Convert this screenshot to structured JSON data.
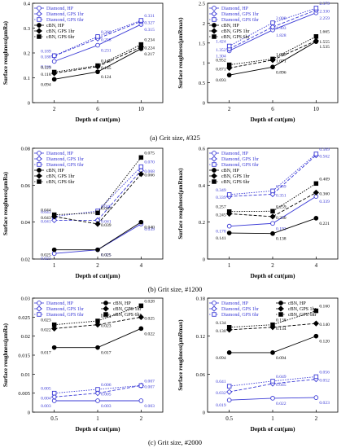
{
  "colors": {
    "diamond": "#3b3bd6",
    "cbn": "#000000"
  },
  "captions": [
    {
      "prefix": "(a) Grit size, ",
      "value": "#325"
    },
    {
      "prefix": "(b) Grit size, ",
      "value": "#1200"
    },
    {
      "prefix": "(c) Grit size, ",
      "value": "#2000"
    }
  ],
  "chart_data": [
    {
      "type": "line",
      "xlabel": "Depth of cut(μm)",
      "ylabel": "Surface roughness(μmRa)",
      "categories": [
        "2",
        "6",
        "10"
      ],
      "ylim": [
        0,
        0.4
      ],
      "yticks": [
        "0",
        "0.1",
        "0.2",
        "0.3",
        "0.4"
      ],
      "series": [
        {
          "name": "Diamond, HP",
          "values": [
            0.166,
            0.231,
            0.315
          ],
          "labels": [
            "0.166",
            "0.231",
            "0.315"
          ]
        },
        {
          "name": "Diamond, GPS 1hr",
          "values": [
            0.188,
            0.258,
            0.327
          ],
          "labels": [
            "0.188",
            "0.258",
            "0.327"
          ]
        },
        {
          "name": "Diamond, GPS 6hr",
          "values": [
            0.189,
            0.266,
            0.331
          ],
          "labels": [
            "0.189",
            "0.266",
            "0.331"
          ]
        },
        {
          "name": "cBN, HP",
          "values": [
            0.094,
            0.124,
            0.217
          ],
          "labels": [
            "0.094",
            "0.124",
            "0.217"
          ]
        },
        {
          "name": "cBN, GPS 1hr",
          "values": [
            0.118,
            0.145,
            0.224
          ],
          "labels": [
            "0.118",
            "0.145",
            "0.224"
          ]
        },
        {
          "name": "cBN, GPS 6hr",
          "values": [
            0.123,
            0.149,
            0.234
          ],
          "labels": [
            "0.123",
            "0.149",
            "0.234"
          ]
        }
      ]
    },
    {
      "type": "line",
      "xlabel": "Depth of cut(μm)",
      "ylabel": "Surface roughness(μmRmax)",
      "categories": [
        "2",
        "6",
        "10"
      ],
      "ylim": [
        0,
        2.5
      ],
      "yticks": [
        "0",
        "0.5",
        "1",
        "1.5",
        "2",
        "2.5"
      ],
      "series": [
        {
          "name": "Diamond, HP",
          "values": [
            1.304,
            1.828,
            2.259
          ],
          "labels": [
            "1.304",
            "1.828",
            "2.259"
          ]
        },
        {
          "name": "Diamond, GPS 1hr",
          "values": [
            1.352,
            1.903,
            2.33
          ],
          "labels": [
            "1.352",
            "1.903",
            "2.330"
          ]
        },
        {
          "name": "Diamond, GPS 6hr",
          "values": [
            1.424,
            2.008,
            2.379
          ],
          "labels": [
            "1.424",
            "2.008",
            "2.379"
          ]
        },
        {
          "name": "cBN, HP",
          "values": [
            0.693,
            0.896,
            1.535
          ],
          "labels": [
            "0.693",
            "0.896",
            "1.535"
          ]
        },
        {
          "name": "cBN, GPS 1hr",
          "values": [
            0.871,
            1.071,
            1.555
          ],
          "labels": [
            "0.871",
            "1.071",
            "1.555"
          ]
        },
        {
          "name": "cBN, GPS 6hr",
          "values": [
            0.952,
            1.099,
            1.665
          ],
          "labels": [
            "0.952",
            "1.099",
            "1.665"
          ]
        }
      ]
    },
    {
      "type": "line",
      "xlabel": "Depth of cut(μm)",
      "ylabel": "Surface roughness(μmRa)",
      "categories": [
        "1",
        "2",
        "4"
      ],
      "ylim": [
        0.02,
        0.08
      ],
      "yticks": [
        "0.02",
        "0.04",
        "0.06",
        "0.08"
      ],
      "series": [
        {
          "name": "Diamond, HP",
          "values": [
            0.023,
            0.025,
            0.039
          ],
          "labels": [
            "0.023",
            "0.025",
            "0.039"
          ]
        },
        {
          "name": "Diamond, GPS 1hr",
          "values": [
            0.041,
            0.041,
            0.068
          ],
          "labels": [
            "0.041",
            "0.041",
            "0.068"
          ]
        },
        {
          "name": "Diamond, GPS 6hr",
          "values": [
            0.043,
            0.046,
            0.07
          ],
          "labels": [
            "0.043",
            "0.046",
            "0.070"
          ]
        },
        {
          "name": "cBN, HP",
          "values": [
            0.025,
            0.025,
            0.04
          ],
          "labels": [
            "0.025",
            "0.025",
            "0.040"
          ]
        },
        {
          "name": "cBN, GPS 1hr",
          "values": [
            0.043,
            0.039,
            0.066
          ],
          "labels": [
            "0.043",
            "0.039",
            "0.066"
          ]
        },
        {
          "name": "cBN, GPS 6hr",
          "values": [
            0.044,
            0.045,
            0.075
          ],
          "labels": [
            "0.044",
            "0.045",
            "0.075"
          ]
        }
      ]
    },
    {
      "type": "line",
      "xlabel": "Depth of cut(μm)",
      "ylabel": "Surface roughness(μmRmax)",
      "categories": [
        "1",
        "2",
        "4"
      ],
      "ylim": [
        0,
        0.6
      ],
      "yticks": [
        "0",
        "0.2",
        "0.4",
        "0.6"
      ],
      "series": [
        {
          "name": "Diamond, HP",
          "values": [
            0.178,
            0.193,
            0.339
          ],
          "labels": [
            "0.178",
            "0.193",
            "0.339"
          ]
        },
        {
          "name": "Diamond, GPS 1hr",
          "values": [
            0.339,
            0.351,
            0.562
          ],
          "labels": [
            "0.339",
            "0.351",
            "0.562"
          ]
        },
        {
          "name": "Diamond, GPS 6hr",
          "values": [
            0.349,
            0.369,
            0.569
          ],
          "labels": [
            "0.349",
            "0.369",
            "0.569"
          ]
        },
        {
          "name": "cBN, HP",
          "values": [
            0.141,
            0.138,
            0.221
          ],
          "labels": [
            "0.141",
            "0.138",
            "0.221"
          ]
        },
        {
          "name": "cBN, GPS 1hr",
          "values": [
            0.245,
            0.23,
            0.36
          ],
          "labels": [
            "0.245",
            "0.230",
            "0.360"
          ]
        },
        {
          "name": "cBN, GPS 6hr",
          "values": [
            0.257,
            0.259,
            0.409
          ],
          "labels": [
            "0.257",
            "0.259",
            "0.409"
          ]
        }
      ]
    },
    {
      "type": "line",
      "xlabel": "Depth of cut(μm)",
      "ylabel": "Surface roughness(μmRa)",
      "categories": [
        "0.5",
        "1",
        "2"
      ],
      "ylim": [
        0,
        0.03
      ],
      "yticks": [
        "0",
        "0.005",
        "0.01",
        "0.015",
        "0.02",
        "0.025",
        "0.03"
      ],
      "series": [
        {
          "name": "Diamond, HP",
          "values": [
            0.003,
            0.003,
            0.003
          ],
          "labels": [
            "0.003",
            "0.003",
            "0.003"
          ]
        },
        {
          "name": "Diamond, GPS 1hr",
          "values": [
            0.004,
            0.005,
            0.007
          ],
          "labels": [
            "0.004",
            "0.005",
            "0.007"
          ]
        },
        {
          "name": "Diamond, GPS 6hr",
          "values": [
            0.005,
            0.006,
            0.007
          ],
          "labels": [
            "0.005",
            "0.006",
            "0.007"
          ]
        },
        {
          "name": "cBN, HP",
          "values": [
            0.017,
            0.017,
            0.022
          ],
          "labels": [
            "0.017",
            "0.017",
            "0.022"
          ]
        },
        {
          "name": "cBN, GPS 1hr",
          "values": [
            0.022,
            0.023,
            0.025
          ],
          "labels": [
            "0.022",
            "0.023",
            "0.025"
          ]
        },
        {
          "name": "cBN, GPS 6hr",
          "values": [
            0.023,
            0.024,
            0.028
          ],
          "labels": [
            "0.023",
            "0.024",
            "0.028"
          ]
        }
      ]
    },
    {
      "type": "line",
      "xlabel": "Depth of cut(μm)",
      "ylabel": "Surface roughness(μmRmax)",
      "categories": [
        "0.5",
        "1",
        "2"
      ],
      "ylim": [
        0,
        0.18
      ],
      "yticks": [
        "0",
        "0.06",
        "0.12",
        "0.18"
      ],
      "series": [
        {
          "name": "Diamond, HP",
          "values": [
            0.019,
            0.022,
            0.023
          ],
          "labels": [
            "0.019",
            "0.022",
            "0.023"
          ]
        },
        {
          "name": "Diamond, GPS 1hr",
          "values": [
            0.032,
            0.045,
            0.052
          ],
          "labels": [
            "0.032",
            "0.045",
            "0.052"
          ]
        },
        {
          "name": "Diamond, GPS 6hr",
          "values": [
            0.041,
            0.049,
            0.056
          ],
          "labels": [
            "0.041",
            "0.049",
            "0.056"
          ]
        },
        {
          "name": "cBN, HP",
          "values": [
            0.094,
            0.094,
            0.12
          ],
          "labels": [
            "0.094",
            "0.094",
            "0.120"
          ]
        },
        {
          "name": "cBN, GPS 1hr",
          "values": [
            0.13,
            0.134,
            0.14
          ],
          "labels": [
            "0.130",
            "0.134",
            "0.140"
          ]
        },
        {
          "name": "cBN, GPS 6hr",
          "values": [
            0.134,
            0.138,
            0.16
          ],
          "labels": [
            "0.134",
            "0.138",
            "0.160"
          ]
        }
      ]
    }
  ]
}
